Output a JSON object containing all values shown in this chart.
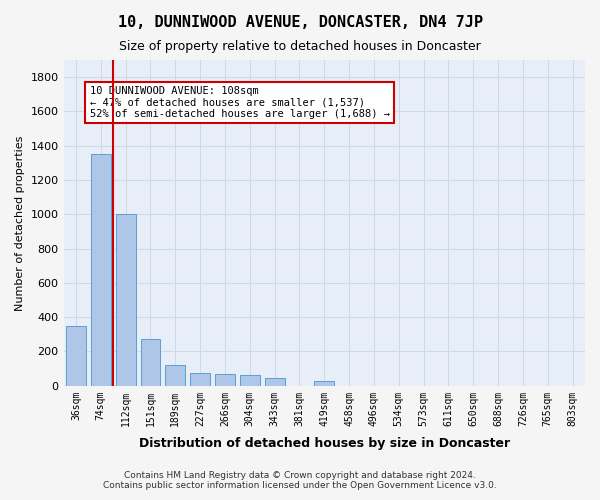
{
  "title": "10, DUNNIWOOD AVENUE, DONCASTER, DN4 7JP",
  "subtitle": "Size of property relative to detached houses in Doncaster",
  "xlabel": "Distribution of detached houses by size in Doncaster",
  "ylabel": "Number of detached properties",
  "footer_line1": "Contains HM Land Registry data © Crown copyright and database right 2024.",
  "footer_line2": "Contains public sector information licensed under the Open Government Licence v3.0.",
  "bin_labels": [
    "36sqm",
    "74sqm",
    "112sqm",
    "151sqm",
    "189sqm",
    "227sqm",
    "266sqm",
    "304sqm",
    "343sqm",
    "381sqm",
    "419sqm",
    "458sqm",
    "496sqm",
    "534sqm",
    "573sqm",
    "611sqm",
    "650sqm",
    "688sqm",
    "726sqm",
    "765sqm",
    "803sqm"
  ],
  "bar_values": [
    350,
    1350,
    1000,
    270,
    120,
    75,
    70,
    65,
    45,
    0,
    30,
    0,
    0,
    0,
    0,
    0,
    0,
    0,
    0,
    0,
    0
  ],
  "bar_color": "#aec6e8",
  "bar_edge_color": "#5a9fd4",
  "highlight_bin_index": 1,
  "property_line_value": 108,
  "property_sqm": 108,
  "pct_smaller": 47,
  "pct_smaller_count": 1537,
  "pct_larger_semidet": 52,
  "pct_larger_semidet_count": 1688,
  "annotation_text_line1": "10 DUNNIWOOD AVENUE: 108sqm",
  "annotation_text_line2": "← 47% of detached houses are smaller (1,537)",
  "annotation_text_line3": "52% of semi-detached houses are larger (1,688) →",
  "annotation_box_color": "#ffffff",
  "annotation_box_edge_color": "#cc0000",
  "red_line_color": "#cc0000",
  "ylim": [
    0,
    1900
  ],
  "yticks": [
    0,
    200,
    400,
    600,
    800,
    1000,
    1200,
    1400,
    1600,
    1800
  ],
  "grid_color": "#d0d8e8",
  "bg_color": "#e8eef8",
  "axes_bg_color": "#e8eef8"
}
